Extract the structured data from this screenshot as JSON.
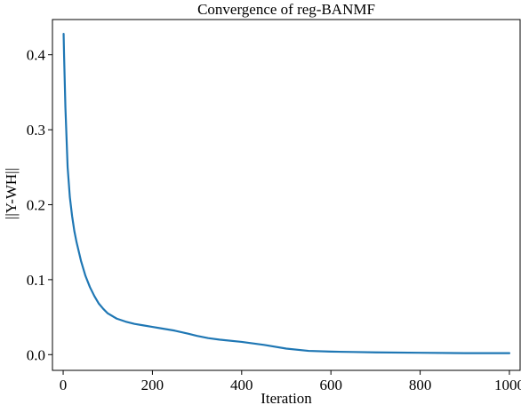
{
  "chart_data": {
    "type": "line",
    "title": "Convergence of reg-BANMF",
    "xlabel": "Iteration",
    "ylabel": "||Y-WH||",
    "xlim": [
      -24,
      1024
    ],
    "ylim": [
      -0.021,
      0.447
    ],
    "xticks": [
      0,
      200,
      400,
      600,
      800,
      1000
    ],
    "yticks": [
      0.0,
      0.1,
      0.2,
      0.3,
      0.4
    ],
    "ytick_labels": [
      "0.0",
      "0.1",
      "0.2",
      "0.3",
      "0.4"
    ],
    "grid": false,
    "legend": "none",
    "series": [
      {
        "color": "#1f77b4",
        "x": [
          1,
          2,
          5,
          10,
          15,
          20,
          25,
          30,
          40,
          50,
          60,
          70,
          80,
          90,
          100,
          120,
          140,
          160,
          180,
          200,
          220,
          250,
          280,
          300,
          325,
          350,
          400,
          450,
          500,
          550,
          600,
          650,
          700,
          800,
          900,
          1000
        ],
        "y": [
          0.428,
          0.4,
          0.33,
          0.25,
          0.21,
          0.185,
          0.165,
          0.15,
          0.125,
          0.105,
          0.09,
          0.078,
          0.068,
          0.061,
          0.055,
          0.048,
          0.044,
          0.041,
          0.039,
          0.037,
          0.035,
          0.032,
          0.028,
          0.025,
          0.022,
          0.02,
          0.017,
          0.013,
          0.008,
          0.005,
          0.004,
          0.0035,
          0.003,
          0.0025,
          0.002,
          0.002
        ]
      }
    ]
  }
}
